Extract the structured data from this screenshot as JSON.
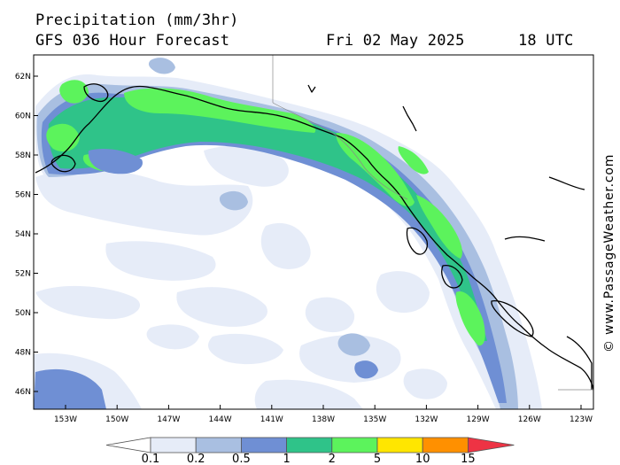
{
  "header": {
    "title": "Precipitation (mm/3hr)",
    "model": "GFS 036 Hour Forecast",
    "date": "Fri 02 May 2025",
    "hour": "18 UTC"
  },
  "credit": "© www.PassageWeather.com",
  "map": {
    "lat_labels": [
      "62N",
      "60N",
      "58N",
      "56N",
      "54N",
      "52N",
      "50N",
      "48N",
      "46N"
    ],
    "lon_labels": [
      "153W",
      "150W",
      "147W",
      "144W",
      "141W",
      "138W",
      "135W",
      "132W",
      "129W",
      "126W",
      "123W"
    ],
    "land_color": "#ffffff",
    "coast_color": "#000000"
  },
  "scale": {
    "labels": [
      "0.1",
      "0.2",
      "0.5",
      "1",
      "2",
      "5",
      "10",
      "15"
    ],
    "colors": [
      "#ffffff",
      "#e6ecf8",
      "#a9bfe1",
      "#6f8fd4",
      "#2fc389",
      "#5cf35c",
      "#ffe600",
      "#ff9000",
      "#ee3344"
    ]
  },
  "precip_colors": {
    "very_light": "#e6ecf8",
    "light": "#a9bfe1",
    "moderate": "#6f8fd4",
    "teal": "#2fc389",
    "green": "#5cf35c"
  }
}
